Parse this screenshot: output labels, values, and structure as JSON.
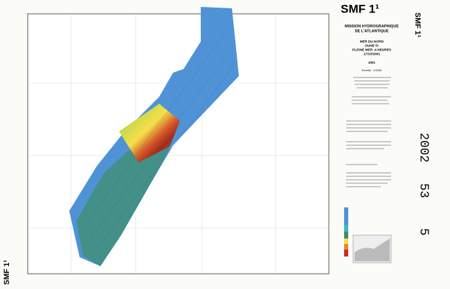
{
  "header": {
    "title": "SMF 1¹",
    "side_title": "SMF 1¹",
    "footer_title": "SMF 1¹"
  },
  "title_block": {
    "org": [
      "MISSION HYDROGRAPHIQUE",
      "DE L'ATLANTIQUE"
    ],
    "place": [
      "MER DU NORD",
      "DUNE FI",
      "PLEINE MER -4 HEURES",
      "17/10/2001"
    ],
    "year": "2001",
    "scale": "Echelle : 1/1000"
  },
  "stamps": [
    "2002",
    "53",
    "5"
  ]
}
